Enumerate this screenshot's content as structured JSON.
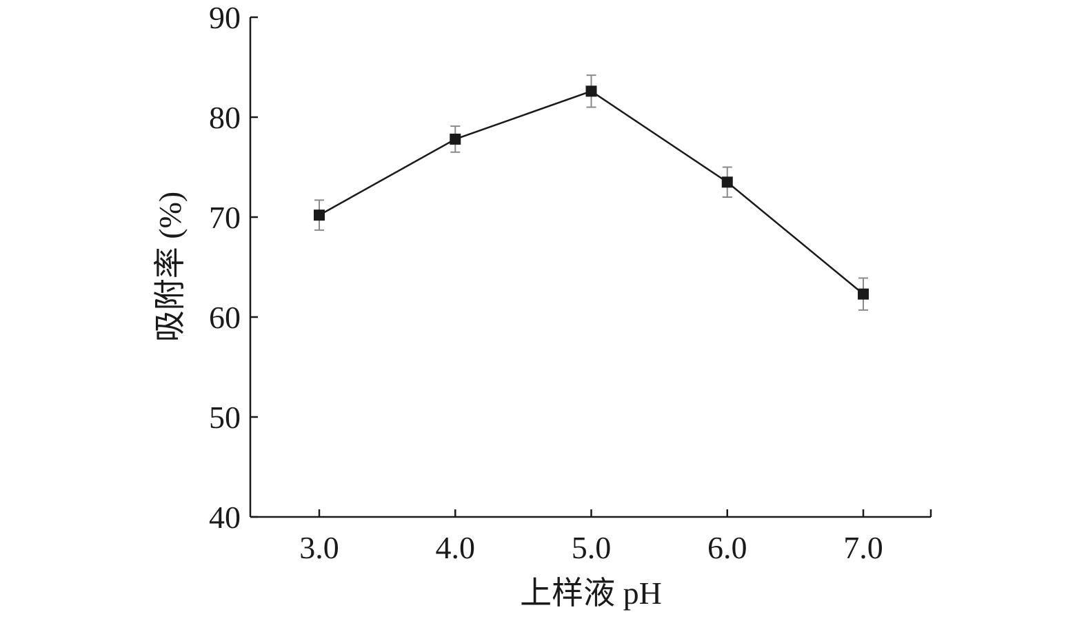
{
  "chart_data": {
    "type": "line",
    "title": "",
    "xlabel": "上样液 pH",
    "ylabel": "吸附率 (%)",
    "categories": [
      "3.0",
      "4.0",
      "5.0",
      "6.0",
      "7.0"
    ],
    "ylim": [
      40,
      90
    ],
    "yticks": [
      "40",
      "50",
      "60",
      "70",
      "80",
      "90"
    ],
    "series": [
      {
        "values": [
          70.2,
          77.8,
          82.6,
          73.5,
          62.3
        ],
        "errors": [
          1.5,
          1.3,
          1.6,
          1.5,
          1.6
        ]
      }
    ],
    "grid": false,
    "legend": "none",
    "marker": "square",
    "colors": {
      "line": "#1a1a1a",
      "marker": "#1a1a1a",
      "error_bar": "#8a8a8a",
      "axis": "#1a1a1a"
    }
  }
}
